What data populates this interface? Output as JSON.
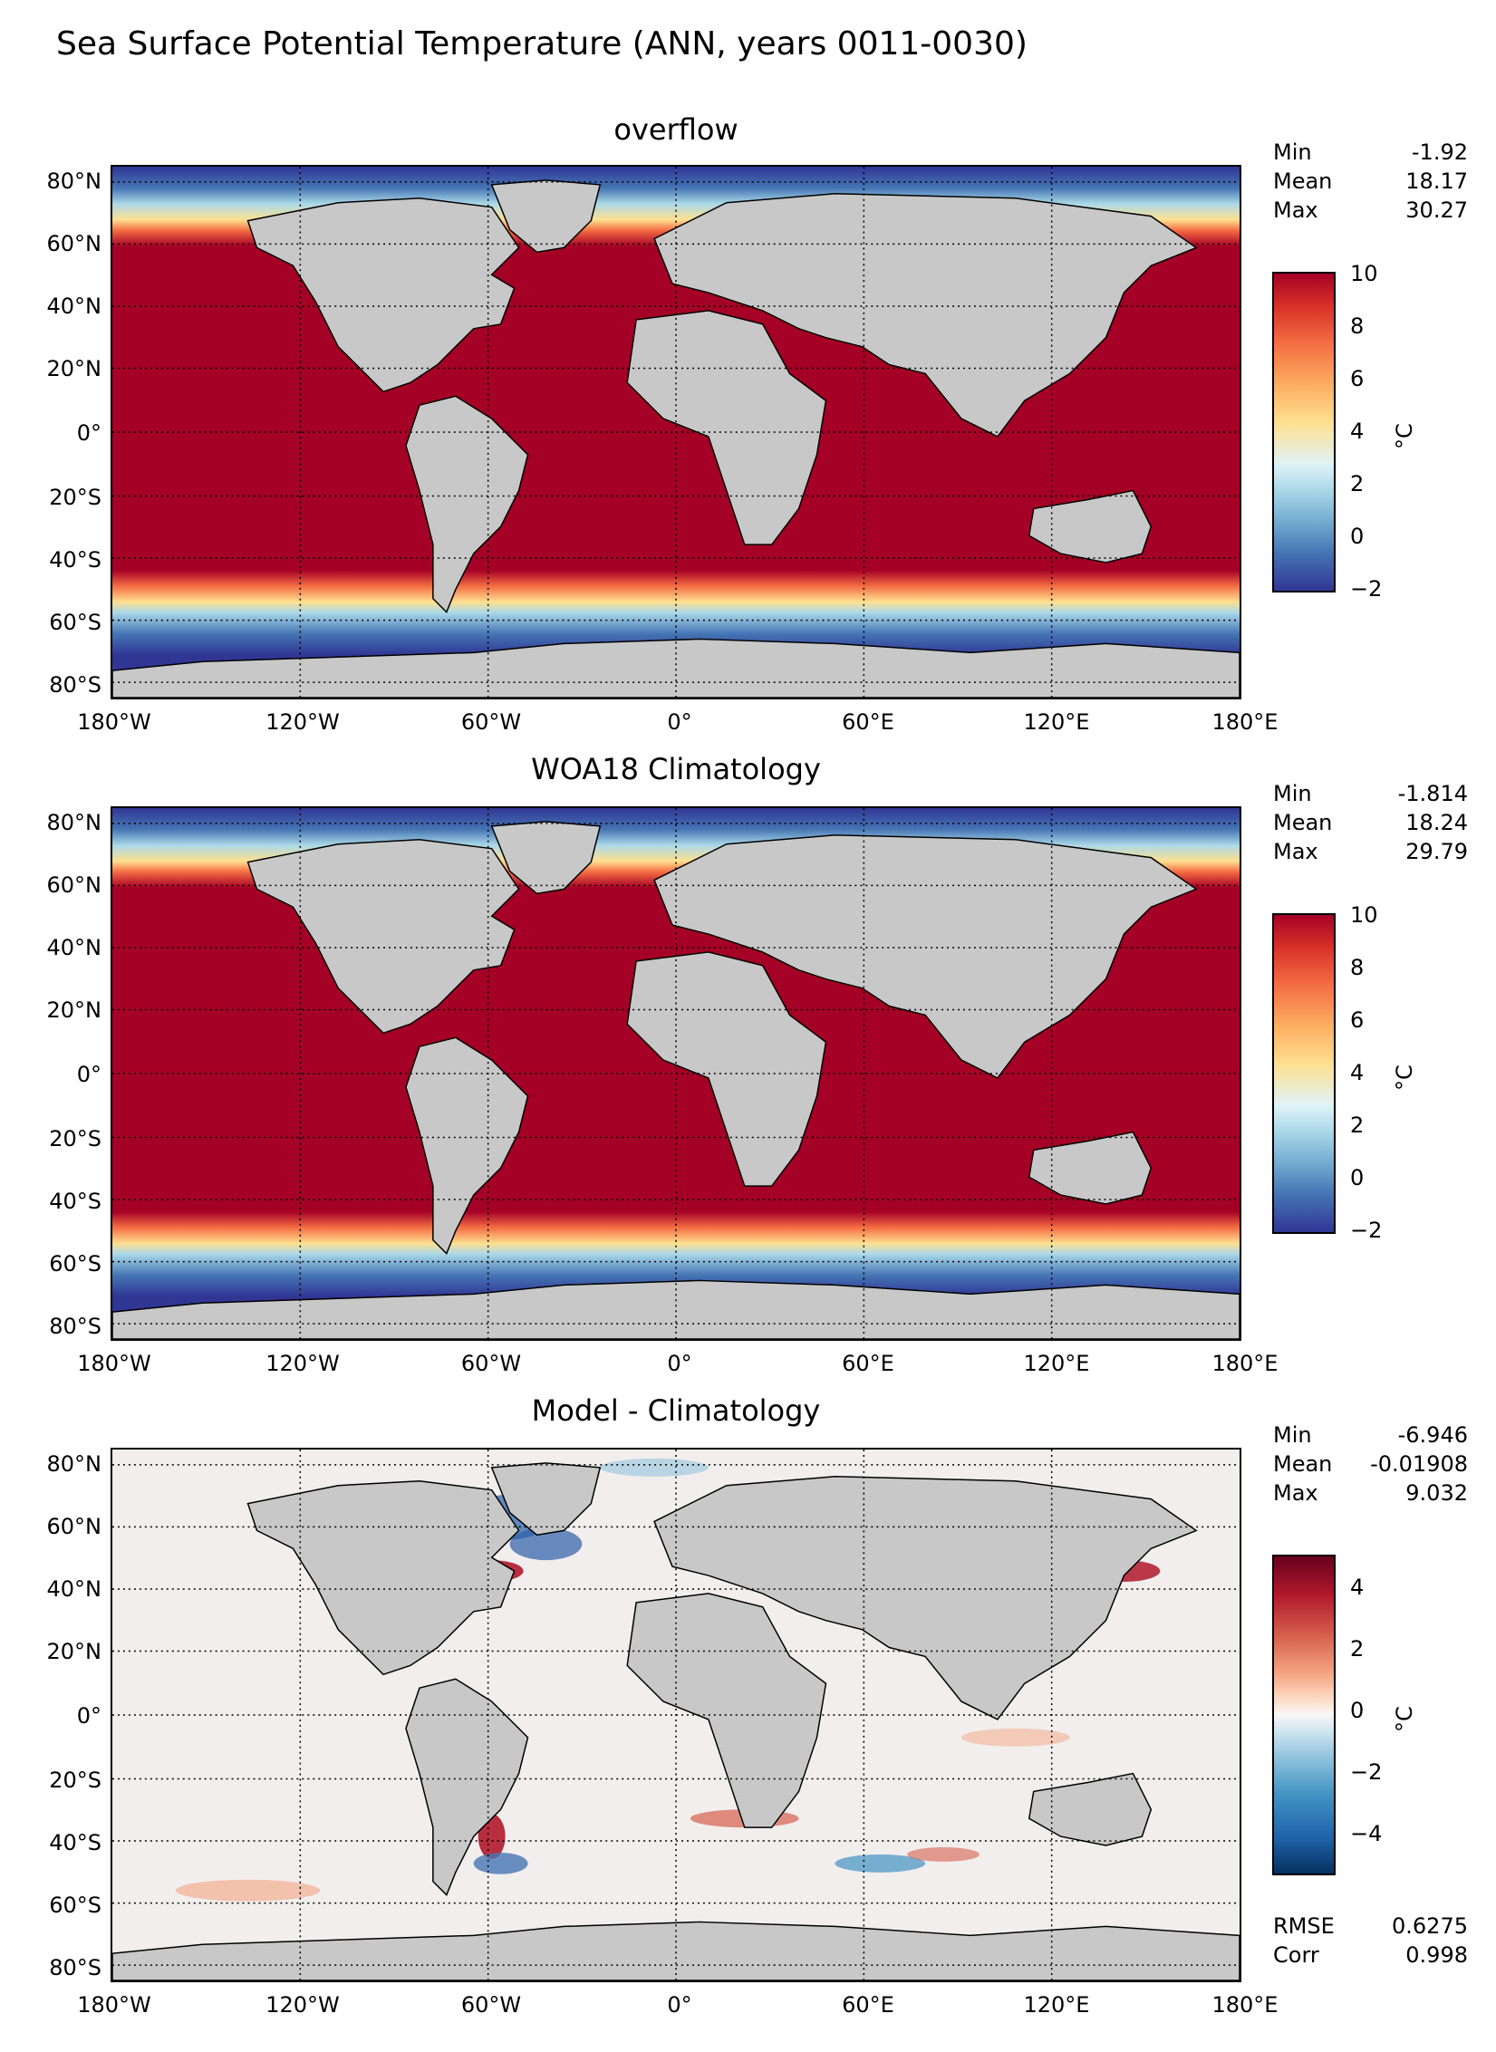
{
  "suptitle": "Sea Surface Potential Temperature (ANN, years 0011-0030)",
  "lat_ticks": [
    "80°N",
    "60°N",
    "40°N",
    "20°N",
    "0°",
    "20°S",
    "40°S",
    "60°S",
    "80°S"
  ],
  "lon_ticks": [
    "180°W",
    "120°W",
    "60°W",
    "0°",
    "60°E",
    "120°E",
    "180°E"
  ],
  "colors": {
    "land": "#c8c8c8",
    "warm": "#a50026",
    "cold": "#313695",
    "diff_bg": "#f2eeee"
  },
  "panels": [
    {
      "title": "overflow",
      "stats": [
        {
          "label": "Min",
          "value": "-1.92"
        },
        {
          "label": "Mean",
          "value": "18.17"
        },
        {
          "label": "Max",
          "value": "30.27"
        }
      ],
      "colorbar": {
        "ticks": [
          "10",
          "8",
          "6",
          "4",
          "2",
          "0",
          "−2"
        ],
        "unit": "°C",
        "cmap": "RdYlBu_r"
      }
    },
    {
      "title": "WOA18 Climatology",
      "stats": [
        {
          "label": "Min",
          "value": "-1.814"
        },
        {
          "label": "Mean",
          "value": "18.24"
        },
        {
          "label": "Max",
          "value": "29.79"
        }
      ],
      "colorbar": {
        "ticks": [
          "10",
          "8",
          "6",
          "4",
          "2",
          "0",
          "−2"
        ],
        "unit": "°C",
        "cmap": "RdYlBu_r"
      }
    },
    {
      "title": "Model - Climatology",
      "stats": [
        {
          "label": "Min",
          "value": "-6.946"
        },
        {
          "label": "Mean",
          "value": "-0.01908"
        },
        {
          "label": "Max",
          "value": "9.032"
        }
      ],
      "extra_stats": [
        {
          "label": "RMSE",
          "value": "0.6275"
        },
        {
          "label": "Corr",
          "value": "0.998"
        }
      ],
      "colorbar": {
        "ticks": [
          "4",
          "2",
          "0",
          "−2",
          "−4"
        ],
        "unit": "°C",
        "cmap": "RdBu_r"
      }
    }
  ]
}
